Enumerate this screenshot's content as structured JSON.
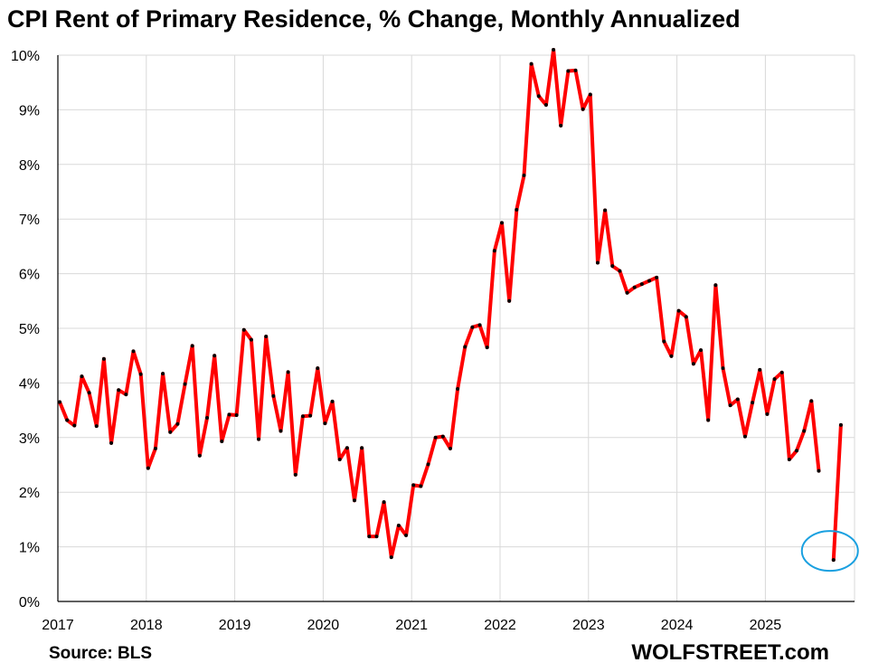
{
  "chart_data": {
    "type": "line",
    "title": "CPI Rent of Primary Residence, % Change, Monthly Annualized",
    "source": "Source: BLS",
    "brand": "WOLFSTREET.com",
    "xlabel": "",
    "ylabel": "",
    "ylim": [
      0,
      10
    ],
    "y_ticks": [
      "0%",
      "1%",
      "2%",
      "3%",
      "4%",
      "5%",
      "6%",
      "7%",
      "8%",
      "9%",
      "10%"
    ],
    "x_ticks": [
      "2017",
      "2018",
      "2019",
      "2020",
      "2021",
      "2022",
      "2023",
      "2024",
      "2025"
    ],
    "start": "2017-01",
    "grid": true,
    "series": [
      {
        "name": "CPI Rent of Primary Residence",
        "color": "#ff0000",
        "marker_color": "#000000",
        "values": [
          3.65,
          3.32,
          3.22,
          4.12,
          3.82,
          3.21,
          4.44,
          2.9,
          3.87,
          3.79,
          4.58,
          4.16,
          2.44,
          2.8,
          4.17,
          3.1,
          3.25,
          3.98,
          4.68,
          2.67,
          3.36,
          4.5,
          2.93,
          3.42,
          3.41,
          4.97,
          4.79,
          2.97,
          4.85,
          3.76,
          3.12,
          4.2,
          2.32,
          3.39,
          3.4,
          4.27,
          3.26,
          3.66,
          2.6,
          2.81,
          1.85,
          2.81,
          1.19,
          1.19,
          1.82,
          0.81,
          1.39,
          1.21,
          2.13,
          2.11,
          2.51,
          3.0,
          3.02,
          2.8,
          3.89,
          4.66,
          5.02,
          5.06,
          4.65,
          6.42,
          6.93,
          5.5,
          7.17,
          7.8,
          9.84,
          9.25,
          9.09,
          10.1,
          8.71,
          9.71,
          9.72,
          9.01,
          9.28,
          6.2,
          7.16,
          6.14,
          6.05,
          5.65,
          5.75,
          5.81,
          5.87,
          5.93,
          4.76,
          4.49,
          5.32,
          5.21,
          4.35,
          4.6,
          3.32,
          5.79,
          4.27,
          3.59,
          3.7,
          3.02,
          3.64,
          4.24,
          3.43,
          4.07,
          4.19,
          2.6,
          2.76,
          3.12,
          3.67,
          2.39,
          null,
          0.76,
          3.23
        ]
      }
    ],
    "annotation": {
      "shape": "ellipse",
      "color": "#1aa0e0",
      "around": "2025-10 (0.76%)"
    }
  }
}
